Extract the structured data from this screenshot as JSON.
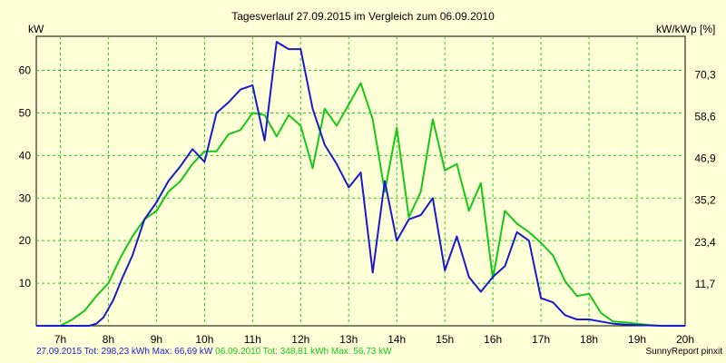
{
  "chart_data": {
    "type": "line",
    "title": "Tagesverlauf 27.09.2015 im Vergleich zum 06.09.2010",
    "ylabel_left": "kW",
    "ylabel_right": "kW/kWp [%]",
    "xlim": [
      6.5,
      20.0
    ],
    "ylim": [
      0,
      68
    ],
    "x_ticks": [
      {
        "x": 7,
        "label": "7h"
      },
      {
        "x": 8,
        "label": "8h"
      },
      {
        "x": 9,
        "label": "9h"
      },
      {
        "x": 10,
        "label": "10h"
      },
      {
        "x": 11,
        "label": "11h"
      },
      {
        "x": 12,
        "label": "12h"
      },
      {
        "x": 13,
        "label": "13h"
      },
      {
        "x": 14,
        "label": "14h"
      },
      {
        "x": 15,
        "label": "15h"
      },
      {
        "x": 16,
        "label": "16h"
      },
      {
        "x": 17,
        "label": "17h"
      },
      {
        "x": 18,
        "label": "18h"
      },
      {
        "x": 19,
        "label": "19h"
      },
      {
        "x": 20,
        "label": "20h"
      }
    ],
    "left_ticks": [
      {
        "y": 10,
        "label": "10"
      },
      {
        "y": 20,
        "label": "20"
      },
      {
        "y": 30,
        "label": "30"
      },
      {
        "y": 40,
        "label": "40"
      },
      {
        "y": 50,
        "label": "50"
      },
      {
        "y": 60,
        "label": "60"
      }
    ],
    "right_ticks": [
      {
        "y": 9.83,
        "label": "11,7"
      },
      {
        "y": 19.66,
        "label": "23,4"
      },
      {
        "y": 29.49,
        "label": "35,2"
      },
      {
        "y": 39.32,
        "label": "46,9"
      },
      {
        "y": 49.15,
        "label": "58,6"
      },
      {
        "y": 58.98,
        "label": "70,3"
      }
    ],
    "grid": true,
    "series": [
      {
        "name": "27.09.2015",
        "color": "#1a1acc",
        "points": [
          [
            6.5,
            0
          ],
          [
            7.25,
            0
          ],
          [
            7.5,
            0
          ],
          [
            7.6,
            0
          ],
          [
            7.75,
            0.5
          ],
          [
            7.9,
            2
          ],
          [
            8.1,
            6
          ],
          [
            8.3,
            11.5
          ],
          [
            8.5,
            16.5
          ],
          [
            8.75,
            25
          ],
          [
            9.0,
            29
          ],
          [
            9.25,
            34
          ],
          [
            9.5,
            37.5
          ],
          [
            9.75,
            41.5
          ],
          [
            10.0,
            38.5
          ],
          [
            10.25,
            50
          ],
          [
            10.5,
            52.5
          ],
          [
            10.75,
            55.5
          ],
          [
            11.0,
            56.5
          ],
          [
            11.25,
            43.5
          ],
          [
            11.5,
            66.7
          ],
          [
            11.75,
            65
          ],
          [
            12.0,
            65
          ],
          [
            12.25,
            51
          ],
          [
            12.5,
            42.5
          ],
          [
            12.75,
            38
          ],
          [
            13.0,
            32.5
          ],
          [
            13.25,
            36
          ],
          [
            13.5,
            12.5
          ],
          [
            13.75,
            34
          ],
          [
            14.0,
            20
          ],
          [
            14.25,
            25
          ],
          [
            14.5,
            26
          ],
          [
            14.75,
            30
          ],
          [
            15.0,
            13
          ],
          [
            15.25,
            21
          ],
          [
            15.5,
            11.5
          ],
          [
            15.75,
            8
          ],
          [
            16.0,
            11.5
          ],
          [
            16.25,
            14
          ],
          [
            16.5,
            22
          ],
          [
            16.75,
            20
          ],
          [
            17.0,
            6.5
          ],
          [
            17.25,
            5.5
          ],
          [
            17.5,
            2.5
          ],
          [
            17.75,
            1.5
          ],
          [
            18.0,
            1.5
          ],
          [
            18.25,
            1
          ],
          [
            18.5,
            0.5
          ],
          [
            18.75,
            0.3
          ],
          [
            19.0,
            0.2
          ],
          [
            19.5,
            0
          ],
          [
            20.0,
            0
          ]
        ]
      },
      {
        "name": "06.09.2010",
        "color": "#14c814",
        "points": [
          [
            6.5,
            0
          ],
          [
            7.0,
            0
          ],
          [
            7.25,
            1.5
          ],
          [
            7.5,
            3.5
          ],
          [
            7.75,
            7
          ],
          [
            8.0,
            10
          ],
          [
            8.25,
            16
          ],
          [
            8.5,
            21
          ],
          [
            8.75,
            25
          ],
          [
            9.0,
            27
          ],
          [
            9.25,
            31.5
          ],
          [
            9.5,
            34
          ],
          [
            9.75,
            38
          ],
          [
            10.0,
            41
          ],
          [
            10.25,
            41
          ],
          [
            10.5,
            45
          ],
          [
            10.75,
            46
          ],
          [
            11.0,
            50
          ],
          [
            11.25,
            49.5
          ],
          [
            11.5,
            44.5
          ],
          [
            11.75,
            49.5
          ],
          [
            12.0,
            47
          ],
          [
            12.25,
            37
          ],
          [
            12.5,
            51
          ],
          [
            12.75,
            47
          ],
          [
            13.0,
            52
          ],
          [
            13.25,
            57
          ],
          [
            13.5,
            48.5
          ],
          [
            13.75,
            31.5
          ],
          [
            14.0,
            46.5
          ],
          [
            14.25,
            25.5
          ],
          [
            14.5,
            31.5
          ],
          [
            14.75,
            48.5
          ],
          [
            15.0,
            36.5
          ],
          [
            15.25,
            38
          ],
          [
            15.5,
            27
          ],
          [
            15.75,
            33.5
          ],
          [
            16.0,
            11
          ],
          [
            16.25,
            27
          ],
          [
            16.5,
            24
          ],
          [
            16.75,
            22
          ],
          [
            17.0,
            19.5
          ],
          [
            17.25,
            16.5
          ],
          [
            17.5,
            10.5
          ],
          [
            17.75,
            7
          ],
          [
            18.0,
            7.5
          ],
          [
            18.25,
            3
          ],
          [
            18.5,
            1
          ],
          [
            18.75,
            0.8
          ],
          [
            19.0,
            0.5
          ],
          [
            19.25,
            0.2
          ],
          [
            19.5,
            0
          ],
          [
            20.0,
            0
          ]
        ]
      }
    ]
  },
  "footer": {
    "blue_text": "27.09.2015 Tot: 298,23 kWh Max: 66,69 kW",
    "green_text": "06.09.2010 Tot: 348,81 kWh Max: 56,73 kW",
    "brand": "SunnyReport pinxit"
  }
}
